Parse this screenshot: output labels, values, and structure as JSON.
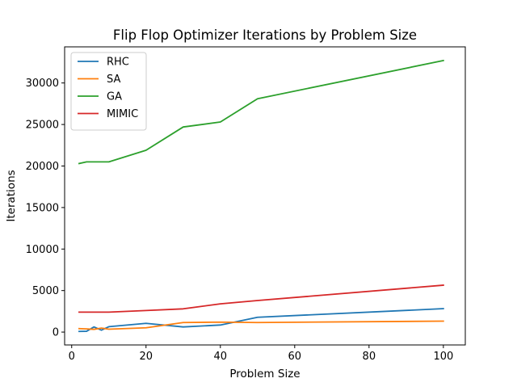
{
  "chart_data": {
    "type": "line",
    "title": "Flip Flop Optimizer Iterations by Problem Size",
    "xlabel": "Problem Size",
    "ylabel": "Iterations",
    "xlim": [
      -1.9,
      105.9
    ],
    "ylim": [
      -1550,
      34350
    ],
    "xticks": [
      0,
      20,
      40,
      60,
      80,
      100
    ],
    "yticks": [
      0,
      5000,
      10000,
      15000,
      20000,
      25000,
      30000
    ],
    "grid": false,
    "legend_position": "top-left",
    "series": [
      {
        "name": "RHC",
        "color": "#1f77b4",
        "x": [
          2,
          4,
          6,
          8,
          10,
          20,
          30,
          40,
          50,
          100
        ],
        "y": [
          80,
          100,
          620,
          230,
          650,
          1050,
          620,
          850,
          1780,
          2820
        ]
      },
      {
        "name": "SA",
        "color": "#ff7f0e",
        "x": [
          2,
          4,
          6,
          8,
          10,
          20,
          30,
          40,
          50,
          100
        ],
        "y": [
          420,
          380,
          330,
          480,
          350,
          520,
          1150,
          1200,
          1150,
          1320
        ]
      },
      {
        "name": "GA",
        "color": "#2ca02c",
        "x": [
          2,
          4,
          6,
          8,
          10,
          20,
          30,
          40,
          50,
          100
        ],
        "y": [
          20300,
          20500,
          20500,
          20500,
          20500,
          21900,
          24700,
          25300,
          28100,
          32700
        ]
      },
      {
        "name": "MIMIC",
        "color": "#d62728",
        "x": [
          2,
          4,
          6,
          8,
          10,
          20,
          30,
          40,
          50,
          100
        ],
        "y": [
          2400,
          2400,
          2400,
          2400,
          2400,
          2600,
          2800,
          3400,
          3800,
          5650
        ]
      }
    ]
  }
}
